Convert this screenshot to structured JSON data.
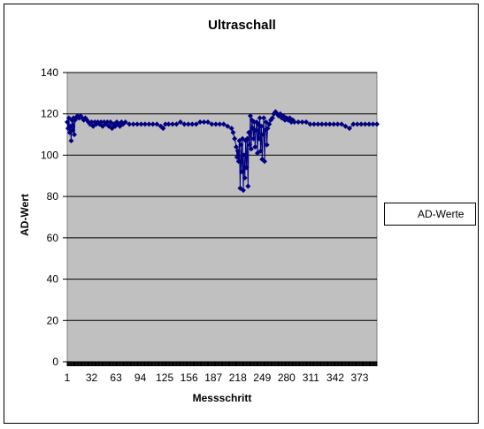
{
  "chart_data": {
    "type": "line",
    "title": "Ultraschall",
    "xlabel": "Messschritt",
    "ylabel": "AD-Wert",
    "ylim": [
      0,
      140
    ],
    "yticks": [
      0,
      20,
      40,
      60,
      80,
      100,
      120,
      140
    ],
    "xticks": [
      1,
      32,
      63,
      94,
      125,
      156,
      187,
      218,
      249,
      280,
      311,
      342,
      373
    ],
    "xlim": [
      1,
      395
    ],
    "grid": true,
    "legend_position": "right",
    "background_color": "#c0c0c0",
    "series_color": "#000080",
    "marker": "diamond",
    "series": [
      {
        "name": "AD-Werte",
        "points": [
          [
            1,
            116
          ],
          [
            2,
            113
          ],
          [
            3,
            118
          ],
          [
            4,
            111
          ],
          [
            5,
            114
          ],
          [
            6,
            107
          ],
          [
            7,
            117
          ],
          [
            8,
            112
          ],
          [
            9,
            118
          ],
          [
            10,
            110
          ],
          [
            11,
            117
          ],
          [
            12,
            118
          ],
          [
            14,
            119
          ],
          [
            16,
            118
          ],
          [
            18,
            119
          ],
          [
            20,
            118
          ],
          [
            22,
            117
          ],
          [
            24,
            118
          ],
          [
            26,
            117
          ],
          [
            28,
            116
          ],
          [
            30,
            115
          ],
          [
            32,
            116
          ],
          [
            34,
            114
          ],
          [
            36,
            116
          ],
          [
            38,
            115
          ],
          [
            40,
            116
          ],
          [
            42,
            115
          ],
          [
            44,
            116
          ],
          [
            46,
            114
          ],
          [
            48,
            116
          ],
          [
            50,
            115
          ],
          [
            52,
            116
          ],
          [
            54,
            114
          ],
          [
            56,
            116
          ],
          [
            58,
            113
          ],
          [
            60,
            115
          ],
          [
            62,
            114
          ],
          [
            64,
            116
          ],
          [
            66,
            115
          ],
          [
            68,
            114
          ],
          [
            70,
            116
          ],
          [
            72,
            115
          ],
          [
            75,
            116
          ],
          [
            80,
            115
          ],
          [
            85,
            115
          ],
          [
            90,
            115
          ],
          [
            95,
            115
          ],
          [
            100,
            115
          ],
          [
            105,
            115
          ],
          [
            110,
            115
          ],
          [
            115,
            115
          ],
          [
            120,
            114
          ],
          [
            123,
            113
          ],
          [
            126,
            115
          ],
          [
            130,
            115
          ],
          [
            135,
            115
          ],
          [
            140,
            115
          ],
          [
            145,
            116
          ],
          [
            150,
            115
          ],
          [
            155,
            115
          ],
          [
            160,
            115
          ],
          [
            165,
            115
          ],
          [
            170,
            116
          ],
          [
            175,
            116
          ],
          [
            180,
            116
          ],
          [
            185,
            115
          ],
          [
            190,
            115
          ],
          [
            195,
            115
          ],
          [
            200,
            115
          ],
          [
            205,
            114
          ],
          [
            210,
            113
          ],
          [
            212,
            111
          ],
          [
            214,
            108
          ],
          [
            216,
            104
          ],
          [
            217,
            99
          ],
          [
            218,
            102
          ],
          [
            219,
            97
          ],
          [
            220,
            107
          ],
          [
            221,
            84
          ],
          [
            222,
            105
          ],
          [
            223,
            92
          ],
          [
            224,
            108
          ],
          [
            225,
            83
          ],
          [
            226,
            100
          ],
          [
            227,
            89
          ],
          [
            228,
            107
          ],
          [
            229,
            94
          ],
          [
            230,
            108
          ],
          [
            231,
            85
          ],
          [
            232,
            111
          ],
          [
            233,
            105
          ],
          [
            234,
            119
          ],
          [
            235,
            103
          ],
          [
            236,
            117
          ],
          [
            237,
            113
          ],
          [
            238,
            108
          ],
          [
            239,
            116
          ],
          [
            240,
            104
          ],
          [
            241,
            112
          ],
          [
            242,
            116
          ],
          [
            243,
            101
          ],
          [
            244,
            115
          ],
          [
            245,
            108
          ],
          [
            246,
            118
          ],
          [
            247,
            102
          ],
          [
            248,
            114
          ],
          [
            249,
            98
          ],
          [
            250,
            110
          ],
          [
            251,
            118
          ],
          [
            252,
            97
          ],
          [
            253,
            112
          ],
          [
            254,
            116
          ],
          [
            255,
            105
          ],
          [
            256,
            113
          ],
          [
            258,
            115
          ],
          [
            260,
            117
          ],
          [
            262,
            118
          ],
          [
            264,
            120
          ],
          [
            266,
            121
          ],
          [
            268,
            120
          ],
          [
            270,
            119
          ],
          [
            272,
            120
          ],
          [
            274,
            118
          ],
          [
            276,
            119
          ],
          [
            278,
            117
          ],
          [
            280,
            118
          ],
          [
            282,
            117
          ],
          [
            284,
            118
          ],
          [
            286,
            116
          ],
          [
            288,
            117
          ],
          [
            290,
            116
          ],
          [
            295,
            116
          ],
          [
            300,
            116
          ],
          [
            305,
            116
          ],
          [
            310,
            115
          ],
          [
            315,
            115
          ],
          [
            320,
            115
          ],
          [
            325,
            115
          ],
          [
            330,
            115
          ],
          [
            335,
            115
          ],
          [
            340,
            115
          ],
          [
            345,
            115
          ],
          [
            350,
            115
          ],
          [
            355,
            114
          ],
          [
            360,
            113
          ],
          [
            365,
            115
          ],
          [
            370,
            115
          ],
          [
            375,
            115
          ],
          [
            380,
            115
          ],
          [
            385,
            115
          ],
          [
            390,
            115
          ],
          [
            395,
            115
          ]
        ]
      }
    ]
  }
}
